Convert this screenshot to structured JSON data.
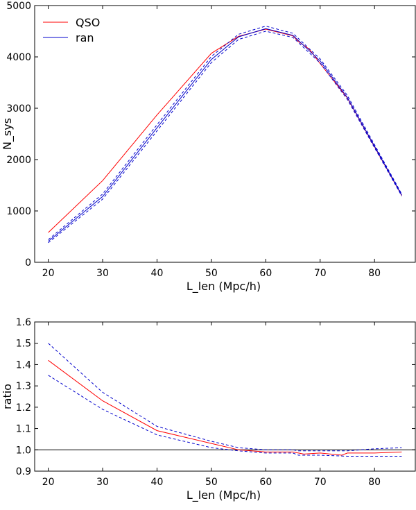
{
  "colors": {
    "qso": "#ff0000",
    "ran": "#0000cc",
    "axes": "#000000",
    "reference": "#000000"
  },
  "chart_data": [
    {
      "type": "line",
      "xlabel": "L_len (Mpc/h)",
      "ylabel": "N_sys",
      "xlim": [
        17.5,
        87.5
      ],
      "ylim": [
        0,
        5000
      ],
      "xticks": [
        20,
        30,
        40,
        50,
        60,
        70,
        80
      ],
      "yticks": [
        0,
        1000,
        2000,
        3000,
        4000,
        5000
      ],
      "legend": {
        "position": "top-left",
        "entries": [
          "QSO",
          "ran"
        ]
      },
      "series": [
        {
          "name": "QSO",
          "style": "solid",
          "color": "#ff0000",
          "x": [
            20,
            30,
            40,
            50,
            55,
            60,
            65,
            66,
            68,
            70,
            75,
            80,
            85
          ],
          "y": [
            580,
            1590,
            2870,
            4070,
            4400,
            4540,
            4410,
            4300,
            4150,
            3870,
            3200,
            2250,
            1300
          ]
        },
        {
          "name": "ran",
          "style": "solid",
          "color": "#0000cc",
          "x": [
            20,
            30,
            40,
            50,
            55,
            60,
            65,
            70,
            75,
            80,
            85
          ],
          "y": [
            410,
            1280,
            2620,
            3950,
            4390,
            4550,
            4420,
            3920,
            3210,
            2260,
            1310
          ]
        },
        {
          "name": "ran upper",
          "style": "dashed",
          "color": "#0000cc",
          "x": [
            20,
            30,
            40,
            50,
            55,
            60,
            65,
            70,
            75,
            80,
            85
          ],
          "y": [
            440,
            1330,
            2680,
            4010,
            4440,
            4600,
            4460,
            3960,
            3250,
            2290,
            1330
          ]
        },
        {
          "name": "ran lower",
          "style": "dashed",
          "color": "#0000cc",
          "x": [
            20,
            30,
            40,
            50,
            55,
            60,
            65,
            70,
            75,
            80,
            85
          ],
          "y": [
            380,
            1230,
            2560,
            3890,
            4340,
            4500,
            4380,
            3880,
            3170,
            2230,
            1290
          ]
        }
      ]
    },
    {
      "type": "line",
      "xlabel": "L_len (Mpc/h)",
      "ylabel": "ratio",
      "xlim": [
        17.5,
        87.5
      ],
      "ylim": [
        0.9,
        1.6
      ],
      "xticks": [
        20,
        30,
        40,
        50,
        60,
        70,
        80
      ],
      "yticks": [
        0.9,
        1.0,
        1.1,
        1.2,
        1.3,
        1.4,
        1.5,
        1.6
      ],
      "reference_line": 1.0,
      "series": [
        {
          "name": "QSO/ran",
          "style": "solid",
          "color": "#ff0000",
          "x": [
            20,
            30,
            40,
            50,
            55,
            60,
            65,
            66,
            67,
            70,
            74,
            75,
            80,
            85
          ],
          "y": [
            1.42,
            1.23,
            1.09,
            1.03,
            1.0,
            0.99,
            0.99,
            0.985,
            0.98,
            0.985,
            0.975,
            0.985,
            0.985,
            0.99
          ]
        },
        {
          "name": "upper",
          "style": "dashed",
          "color": "#0000cc",
          "x": [
            20,
            30,
            40,
            50,
            55,
            60,
            65,
            66,
            70,
            75,
            80,
            85
          ],
          "y": [
            1.5,
            1.27,
            1.11,
            1.04,
            1.01,
            1.0,
            1.0,
            0.995,
            0.995,
            0.995,
            1.005,
            1.01
          ]
        },
        {
          "name": "lower",
          "style": "dashed",
          "color": "#0000cc",
          "x": [
            20,
            30,
            40,
            50,
            55,
            60,
            65,
            66,
            67,
            70,
            75,
            80,
            85
          ],
          "y": [
            1.35,
            1.19,
            1.07,
            1.01,
            0.995,
            0.985,
            0.985,
            0.975,
            0.975,
            0.975,
            0.97,
            0.97,
            0.97
          ]
        }
      ]
    }
  ]
}
